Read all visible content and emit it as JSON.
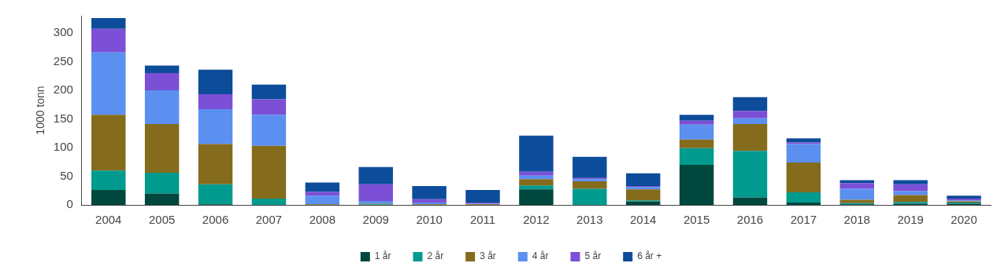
{
  "chart_data": {
    "type": "bar",
    "stacked": true,
    "grid": false,
    "legend": "bottom",
    "y_label": "1000 tonn",
    "categories": [
      "2004",
      "2005",
      "2006",
      "2007",
      "2008",
      "2009",
      "2010",
      "2011",
      "2012",
      "2013",
      "2014",
      "2015",
      "2016",
      "2017",
      "2018",
      "2019",
      "2020"
    ],
    "series": [
      {
        "name": "1 år",
        "color": "#00473e",
        "values": [
          26,
          20,
          1,
          0,
          0,
          0,
          0,
          0,
          27,
          0,
          6,
          70,
          13,
          4,
          1,
          2,
          2
        ]
      },
      {
        "name": "2 år",
        "color": "#009a8e",
        "values": [
          34,
          36,
          35,
          11,
          0,
          1,
          0,
          0,
          7,
          28,
          2,
          29,
          81,
          18,
          2,
          3,
          2
        ]
      },
      {
        "name": "3 år",
        "color": "#856b1c",
        "values": [
          97,
          85,
          70,
          92,
          1,
          1,
          1,
          1,
          11,
          13,
          19,
          15,
          47,
          52,
          6,
          12,
          2
        ]
      },
      {
        "name": "4 år",
        "color": "#5b8ff0",
        "values": [
          109,
          59,
          61,
          54,
          15,
          5,
          3,
          1,
          6,
          4,
          4,
          26,
          10,
          32,
          19,
          7,
          2
        ]
      },
      {
        "name": "5 år",
        "color": "#7b4fd6",
        "values": [
          41,
          30,
          26,
          27,
          7,
          29,
          6,
          2,
          7,
          2,
          2,
          7,
          13,
          3,
          10,
          12,
          3
        ]
      },
      {
        "name": "6 år +",
        "color": "#0d4c9a",
        "values": [
          19,
          13,
          43,
          26,
          16,
          30,
          23,
          22,
          63,
          37,
          22,
          10,
          24,
          7,
          5,
          7,
          5
        ]
      }
    ],
    "ylim": [
      0,
      330
    ],
    "yticks": [
      0,
      50,
      100,
      150,
      200,
      250,
      300
    ]
  }
}
